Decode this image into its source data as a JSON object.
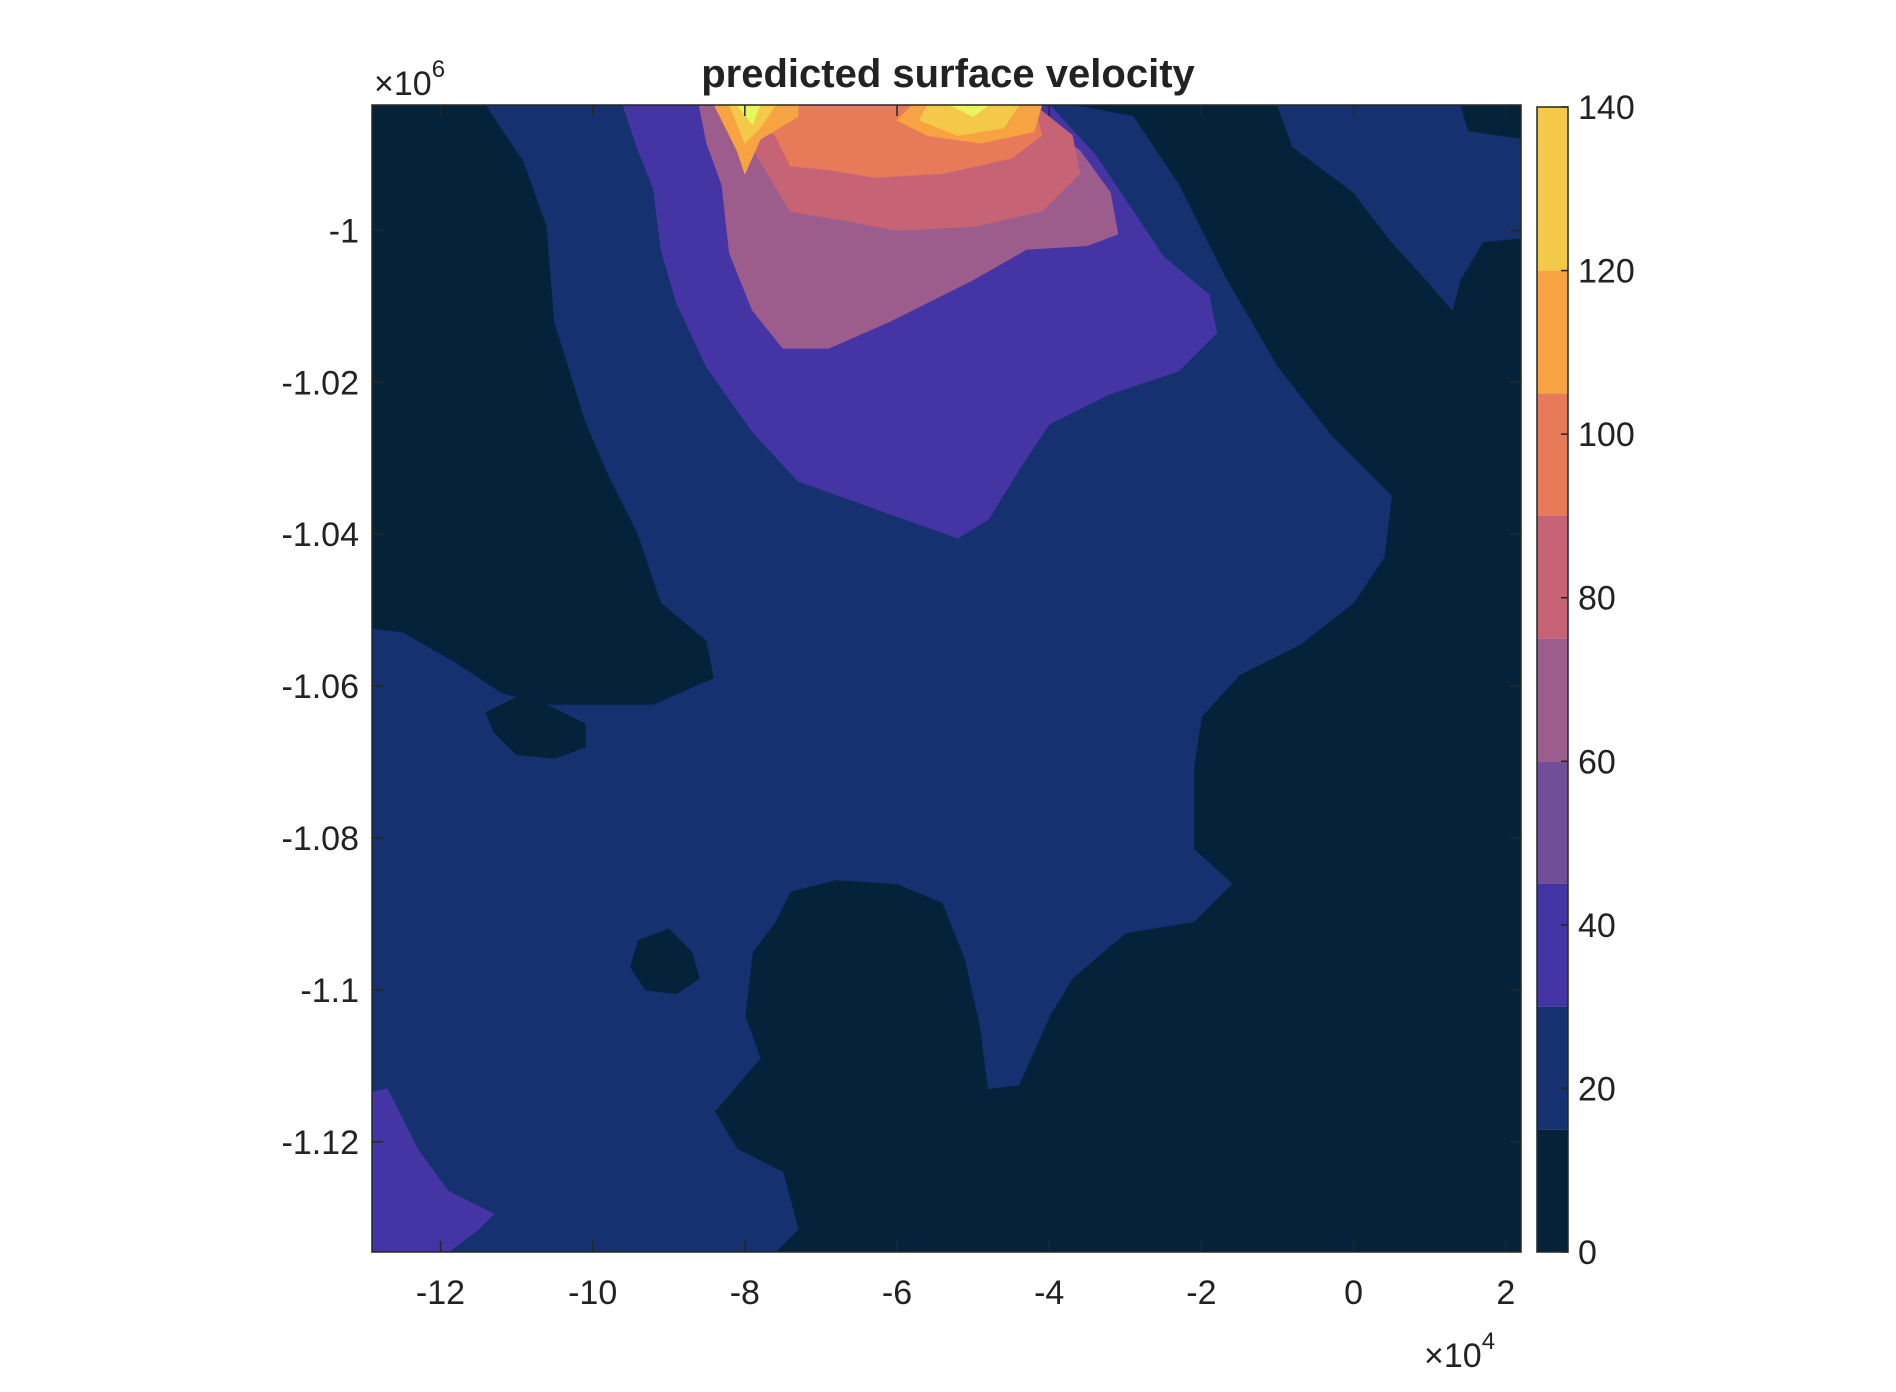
{
  "chart_data": {
    "type": "heatmap",
    "subtype": "filled-contour",
    "title": "predicted surface velocity",
    "xlabel": "",
    "ylabel": "",
    "x_exponent_label": "×10",
    "x_exponent": "4",
    "y_exponent_label": "×10",
    "y_exponent": "6",
    "xlim": [
      -12.9,
      2.2
    ],
    "ylim": [
      -1.1345,
      -0.9835
    ],
    "x_ticks": [
      -12,
      -10,
      -8,
      -6,
      -4,
      -2,
      0,
      2
    ],
    "x_tick_labels": [
      "-12",
      "-10",
      "-8",
      "-6",
      "-4",
      "-2",
      "0",
      "2"
    ],
    "y_ticks": [
      -1.0,
      -1.02,
      -1.04,
      -1.06,
      -1.08,
      -1.1,
      -1.12
    ],
    "y_tick_labels": [
      "-1",
      "-1.02",
      "-1.04",
      "-1.06",
      "-1.08",
      "-1.1",
      "-1.12"
    ],
    "grid": false,
    "colorbar": {
      "limits": [
        0,
        140
      ],
      "ticks": [
        0,
        20,
        40,
        60,
        80,
        100,
        120,
        140
      ],
      "tick_labels": [
        "0",
        "20",
        "40",
        "60",
        "80",
        "100",
        "120",
        "140"
      ],
      "levels": [
        0,
        15,
        30,
        45,
        60,
        75,
        90,
        105,
        120,
        140
      ],
      "colors": [
        "#04223a",
        "#15316f",
        "#4535a4",
        "#734e98",
        "#9c5c8c",
        "#c66476",
        "#e77a58",
        "#f7a341",
        "#f4c848",
        "#e8f55e"
      ]
    },
    "contour_regions": [
      {
        "level": 1,
        "points": [
          [
            -12.9,
            -1.0525
          ],
          [
            -12.5,
            -1.053
          ],
          [
            -11.8,
            -1.057
          ],
          [
            -11.2,
            -1.061
          ],
          [
            -10.6,
            -1.0625
          ],
          [
            -9.9,
            -1.0625
          ],
          [
            -9.2,
            -1.0625
          ],
          [
            -8.4,
            -1.059
          ],
          [
            -8.5,
            -1.054
          ],
          [
            -9.1,
            -1.049
          ],
          [
            -9.4,
            -1.04
          ],
          [
            -9.8,
            -1.032
          ],
          [
            -10.1,
            -1.025
          ],
          [
            -10.5,
            -1.012
          ],
          [
            -10.6,
            -0.9995
          ],
          [
            -10.9,
            -0.991
          ],
          [
            -11.4,
            -0.9835
          ],
          [
            -7.0,
            -0.9835
          ],
          [
            -5.6,
            -0.9835
          ],
          [
            -3.7,
            -0.9835
          ],
          [
            -2.9,
            -0.985
          ],
          [
            -2.3,
            -0.994
          ],
          [
            -1.7,
            -1.006
          ],
          [
            -1.0,
            -1.018
          ],
          [
            -0.3,
            -1.027
          ],
          [
            0.5,
            -1.035
          ],
          [
            0.4,
            -1.043
          ],
          [
            0.0,
            -1.049
          ],
          [
            -0.7,
            -1.0545
          ],
          [
            -1.5,
            -1.0585
          ],
          [
            -2.0,
            -1.064
          ],
          [
            -2.1,
            -1.0705
          ],
          [
            -2.1,
            -1.0815
          ],
          [
            -1.6,
            -1.086
          ],
          [
            -2.1,
            -1.091
          ],
          [
            -3.0,
            -1.0925
          ],
          [
            -3.7,
            -1.0985
          ],
          [
            -4.0,
            -1.1035
          ],
          [
            -4.4,
            -1.1125
          ],
          [
            -4.8,
            -1.113
          ],
          [
            -4.9,
            -1.105
          ],
          [
            -5.1,
            -1.096
          ],
          [
            -5.4,
            -1.0885
          ],
          [
            -6.0,
            -1.086
          ],
          [
            -6.8,
            -1.0855
          ],
          [
            -7.4,
            -1.087
          ],
          [
            -7.6,
            -1.091
          ],
          [
            -7.9,
            -1.095
          ],
          [
            -8.0,
            -1.1035
          ],
          [
            -7.8,
            -1.109
          ],
          [
            -8.4,
            -1.116
          ],
          [
            -8.1,
            -1.121
          ],
          [
            -7.5,
            -1.124
          ],
          [
            -7.3,
            -1.1315
          ],
          [
            -7.6,
            -1.1345
          ],
          [
            -12.9,
            -1.1345
          ]
        ]
      },
      {
        "level": 1,
        "points": [
          [
            -1.0,
            -0.9835
          ],
          [
            1.4,
            -0.9835
          ],
          [
            1.5,
            -0.987
          ],
          [
            2.2,
            -0.988
          ],
          [
            2.2,
            -1.001
          ],
          [
            1.7,
            -1.0015
          ],
          [
            1.4,
            -1.0065
          ],
          [
            1.3,
            -1.0105
          ],
          [
            1.0,
            -1.007
          ],
          [
            0.5,
            -1.0015
          ],
          [
            0.0,
            -0.995
          ],
          [
            -0.4,
            -0.992
          ],
          [
            -0.8,
            -0.989
          ]
        ]
      },
      {
        "level": 2,
        "points": [
          [
            -12.9,
            -1.1135
          ],
          [
            -12.7,
            -1.113
          ],
          [
            -12.3,
            -1.121
          ],
          [
            -11.9,
            -1.1265
          ],
          [
            -11.3,
            -1.1295
          ],
          [
            -11.5,
            -1.1315
          ],
          [
            -11.9,
            -1.1345
          ],
          [
            -12.9,
            -1.1345
          ]
        ]
      },
      {
        "level": 2,
        "points": [
          [
            -9.6,
            -0.9835
          ],
          [
            -7.0,
            -0.9835
          ],
          [
            -5.6,
            -0.9835
          ],
          [
            -4.0,
            -0.9835
          ],
          [
            -3.4,
            -0.99
          ],
          [
            -2.9,
            -0.9975
          ],
          [
            -2.5,
            -1.0035
          ],
          [
            -1.9,
            -1.0085
          ],
          [
            -1.8,
            -1.0135
          ],
          [
            -2.3,
            -1.0185
          ],
          [
            -3.2,
            -1.0215
          ],
          [
            -4.0,
            -1.0255
          ],
          [
            -4.4,
            -1.0315
          ],
          [
            -4.8,
            -1.038
          ],
          [
            -5.2,
            -1.0405
          ],
          [
            -5.9,
            -1.038
          ],
          [
            -6.6,
            -1.0355
          ],
          [
            -7.3,
            -1.033
          ],
          [
            -7.9,
            -1.0265
          ],
          [
            -8.5,
            -1.018
          ],
          [
            -8.9,
            -1.0095
          ],
          [
            -9.1,
            -1.0025
          ],
          [
            -9.2,
            -0.9945
          ],
          [
            -9.4,
            -0.9895
          ]
        ]
      },
      {
        "level": 4,
        "points": [
          [
            -8.6,
            -0.9835
          ],
          [
            -7.0,
            -0.9835
          ],
          [
            -5.6,
            -0.9835
          ],
          [
            -4.5,
            -0.9835
          ],
          [
            -3.6,
            -0.9895
          ],
          [
            -3.2,
            -0.995
          ],
          [
            -3.1,
            -1.0005
          ],
          [
            -3.5,
            -1.002
          ],
          [
            -4.3,
            -1.0025
          ],
          [
            -5.0,
            -1.0065
          ],
          [
            -6.1,
            -1.012
          ],
          [
            -6.9,
            -1.0155
          ],
          [
            -7.5,
            -1.0155
          ],
          [
            -7.9,
            -1.0105
          ],
          [
            -8.2,
            -1.003
          ],
          [
            -8.3,
            -0.994
          ],
          [
            -8.5,
            -0.9885
          ]
        ]
      },
      {
        "level": 5,
        "points": [
          [
            -8.3,
            -0.9835
          ],
          [
            -7.0,
            -0.9835
          ],
          [
            -5.6,
            -0.9835
          ],
          [
            -4.2,
            -0.9835
          ],
          [
            -3.7,
            -0.9875
          ],
          [
            -3.6,
            -0.9925
          ],
          [
            -4.1,
            -0.9975
          ],
          [
            -5.0,
            -0.9995
          ],
          [
            -6.0,
            -1.0
          ],
          [
            -6.8,
            -0.9985
          ],
          [
            -7.4,
            -0.9975
          ],
          [
            -7.7,
            -0.9925
          ],
          [
            -8.0,
            -0.9875
          ]
        ]
      },
      {
        "level": 6,
        "points": [
          [
            -8.2,
            -0.9835
          ],
          [
            -7.0,
            -0.9835
          ],
          [
            -5.6,
            -0.9835
          ],
          [
            -4.2,
            -0.9835
          ],
          [
            -4.1,
            -0.9875
          ],
          [
            -4.5,
            -0.9905
          ],
          [
            -5.4,
            -0.9925
          ],
          [
            -6.3,
            -0.993
          ],
          [
            -6.9,
            -0.992
          ],
          [
            -7.4,
            -0.9915
          ],
          [
            -7.6,
            -0.9875
          ],
          [
            -7.9,
            -0.9855
          ]
        ]
      },
      {
        "level": 7,
        "points": [
          [
            -8.4,
            -0.9835
          ],
          [
            -7.3,
            -0.9835
          ],
          [
            -7.3,
            -0.985
          ],
          [
            -7.8,
            -0.988
          ],
          [
            -8.0,
            -0.9925
          ],
          [
            -8.1,
            -0.9895
          ]
        ]
      },
      {
        "level": 7,
        "points": [
          [
            -5.8,
            -0.9835
          ],
          [
            -4.1,
            -0.9835
          ],
          [
            -4.2,
            -0.987
          ],
          [
            -4.9,
            -0.9885
          ],
          [
            -5.6,
            -0.9875
          ],
          [
            -6.0,
            -0.9855
          ]
        ]
      },
      {
        "level": 8,
        "points": [
          [
            -8.2,
            -0.9835
          ],
          [
            -7.6,
            -0.9835
          ],
          [
            -7.8,
            -0.9865
          ],
          [
            -8.0,
            -0.9885
          ]
        ]
      },
      {
        "level": 8,
        "points": [
          [
            -5.6,
            -0.9835
          ],
          [
            -4.4,
            -0.9835
          ],
          [
            -4.6,
            -0.9865
          ],
          [
            -5.2,
            -0.9875
          ],
          [
            -5.7,
            -0.9855
          ]
        ]
      },
      {
        "level": 9,
        "points": [
          [
            -8.1,
            -0.9835
          ],
          [
            -7.8,
            -0.9835
          ],
          [
            -7.9,
            -0.986
          ]
        ]
      },
      {
        "level": 9,
        "points": [
          [
            -5.3,
            -0.9835
          ],
          [
            -4.8,
            -0.9835
          ],
          [
            -5.0,
            -0.985
          ]
        ]
      },
      {
        "level": 0,
        "points": [
          [
            -11.4,
            -1.0635
          ],
          [
            -11.0,
            -1.0615
          ],
          [
            -10.6,
            -1.0625
          ],
          [
            -10.1,
            -1.065
          ],
          [
            -10.1,
            -1.068
          ],
          [
            -10.5,
            -1.0695
          ],
          [
            -11.0,
            -1.069
          ],
          [
            -11.3,
            -1.066
          ]
        ]
      },
      {
        "level": 0,
        "points": [
          [
            -9.4,
            -1.0935
          ],
          [
            -9.0,
            -1.092
          ],
          [
            -8.7,
            -1.095
          ],
          [
            -8.6,
            -1.0985
          ],
          [
            -8.9,
            -1.1005
          ],
          [
            -9.3,
            -1.1
          ],
          [
            -9.5,
            -1.097
          ]
        ]
      }
    ]
  }
}
